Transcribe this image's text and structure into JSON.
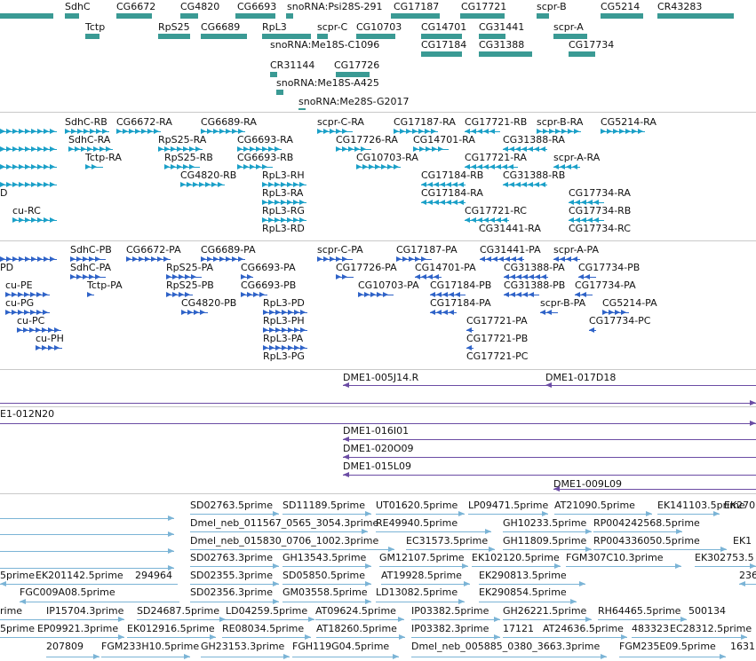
{
  "colors": {
    "genes": "#3a9a94",
    "transcripts_rna": "#1ba0c8",
    "transcripts_protein": "#2f63c8",
    "clones": "#6b4ca4",
    "ests": "#7bb4d6",
    "separator": "#c9c9c9"
  },
  "tracks": {
    "genes": {
      "labels": [
        "SdhC",
        "CG6672",
        "CG4820",
        "CG6693",
        "snoRNA:Psi28S-291",
        "CG17187",
        "CG17721",
        "scpr-B",
        "CG5214",
        "CR43283",
        "Tctp",
        "RpS25",
        "CG6689",
        "RpL3",
        "scpr-C",
        "CG10703",
        "CG14701",
        "CG31441",
        "scpr-A",
        "snoRNA:Me18S-C1096",
        "CG17184",
        "CG31388",
        "CG17734",
        "CR31144",
        "CG17726",
        "snoRNA:Me18S-A425",
        "snoRNA:Me28S-G2017"
      ]
    },
    "transcripts_rna": {
      "labels": [
        "SdhC-RB",
        "CG6672-RA",
        "CG6689-RA",
        "scpr-C-RA",
        "CG17187-RA",
        "CG17721-RB",
        "scpr-B-RA",
        "CG5214-RA",
        "SdhC-RA",
        "RpS25-RA",
        "CG6693-RA",
        "CG17726-RA",
        "CG14701-RA",
        "CG31388-RA",
        "Tctp-RA",
        "RpS25-RB",
        "CG6693-RB",
        "CG10703-RA",
        "CG17721-RA",
        "scpr-A-RA",
        "CG4820-RB",
        "RpL3-RH",
        "CG17184-RB",
        "CG31388-RB",
        "D",
        "RpL3-RA",
        "CG17184-RA",
        "CG17734-RA",
        "cu-RC",
        "RpL3-RG",
        "CG17721-RC",
        "CG17734-RB",
        "RpL3-RD",
        "CG31441-RA",
        "CG17734-RC"
      ]
    },
    "transcripts_protein": {
      "labels": [
        "SdhC-PB",
        "CG6672-PA",
        "CG6689-PA",
        "scpr-C-PA",
        "CG17187-PA",
        "CG31441-PA",
        "scpr-A-PA",
        "PD",
        "SdhC-PA",
        "RpS25-PA",
        "CG6693-PA",
        "CG17726-PA",
        "CG14701-PA",
        "CG31388-PA",
        "CG17734-PB",
        "cu-PE",
        "Tctp-PA",
        "RpS25-PB",
        "CG6693-PB",
        "CG10703-PA",
        "CG17184-PB",
        "CG31388-PB",
        "CG17734-PA",
        "cu-PG",
        "CG4820-PB",
        "RpL3-PD",
        "CG17184-PA",
        "scpr-B-PA",
        "CG5214-PA",
        "cu-PC",
        "RpL3-PH",
        "CG17721-PA",
        "CG17734-PC",
        "cu-PH",
        "RpL3-PA",
        "CG17721-PB",
        "RpL3-PG",
        "CG17721-PC"
      ]
    },
    "clones_a": {
      "labels": [
        "DME1-005J14.R",
        "DME1-017D18"
      ]
    },
    "clones_b": {
      "labels": [
        "E1-012N20",
        "DME1-016I01",
        "DME1-020O09",
        "DME1-015L09",
        "DME1-009L09"
      ]
    },
    "ests": {
      "labels": [
        "SD02763.5prime",
        "SD11189.5prime",
        "UT01620.5prime",
        "LP09471.5prime",
        "AT21090.5prime",
        "EK141103.5prime",
        "EK270",
        "Dmel_neb_011567_0565_3054.3prime",
        "RE49940.5prime",
        "GH10233.5prime",
        "RP004242568.5prime",
        "Dmel_neb_015830_0706_1002.3prime",
        "EC31573.5prime",
        "GH11809.5prime",
        "RP004336050.5prime",
        "EK1",
        "SD02763.3prime",
        "GH13543.5prime",
        "GM12107.5prime",
        "EK102120.5prime",
        "FGM307C10.3prime",
        "EK302753.5",
        "5prime",
        "EK201142.5prime",
        "294964",
        "SD02355.3prime",
        "SD05850.5prime",
        "AT19928.5prime",
        "EK290813.5prime",
        "236",
        "FGC009A08.5prime",
        "SD02356.3prime",
        "GM03558.5prime",
        "LD13082.5prime",
        "EK290854.5prime",
        "rime",
        "IP15704.3prime",
        "SD24687.5prime",
        "LD04259.5prime",
        "AT09624.5prime",
        "IP03382.5prime",
        "GH26221.5prime",
        "RH64465.5prime",
        "500134",
        "5prime",
        "EP09921.3prime",
        "EK012916.5prime",
        "RE08034.5prime",
        "AT18260.5prime",
        "IP03382.3prime",
        "17121",
        "AT24636.5prime",
        "483323",
        "EC28312.5prime",
        "207809",
        "FGM233H10.5prime",
        "GH23153.3prime",
        "FGH119G04.5prime",
        "Dmel_neb_005885_0380_3663.3prime",
        "FGM235E09.5prime",
        "1631"
      ]
    }
  }
}
